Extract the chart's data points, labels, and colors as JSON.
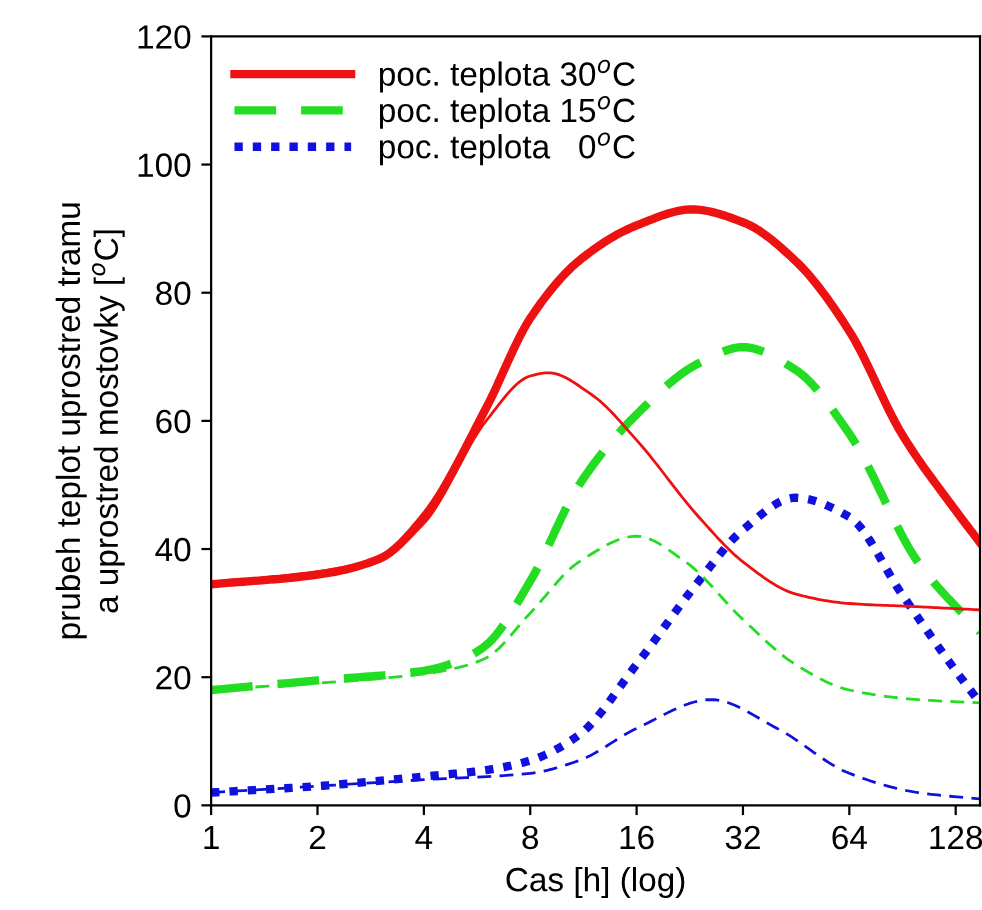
{
  "chart_data": {
    "type": "line",
    "xlabel": "Cas [h] (log)",
    "ylabel": "prubeh teplot uprostred tramu\na uprostred mostovky [$^{o}$C]",
    "log": "x",
    "xlim": [
      1,
      150
    ],
    "xticks": [
      1,
      2,
      4,
      8,
      16,
      32,
      64,
      128
    ],
    "ylim": [
      0,
      120
    ],
    "yticks": [
      0,
      20,
      40,
      60,
      80,
      100,
      120
    ],
    "grid": false,
    "legend": "top left",
    "series": [
      {
        "name": "poc. teplota 30$^{o}$C",
        "color": "#ee1111",
        "line_style": "solid",
        "x": [
          1,
          2,
          3,
          4,
          6,
          8,
          11,
          16,
          23,
          32,
          45,
          64,
          90,
          128,
          150
        ],
        "values": [
          34.5,
          36,
          38.5,
          45,
          62,
          76,
          85,
          90.5,
          93,
          91,
          85,
          74,
          58,
          46,
          41
        ]
      },
      {
        "name": "poc. teplota 15$^{o}$C",
        "color": "#22dd22",
        "line_style": "dashed",
        "x": [
          1,
          2,
          4,
          5,
          6,
          8,
          11,
          16,
          24,
          32,
          45,
          64,
          100,
          150
        ],
        "values": [
          18,
          19.5,
          21,
          22.5,
          25,
          35,
          50,
          61,
          69,
          71.5,
          68,
          58,
          38,
          27
        ]
      },
      {
        "name": "poc. teplota   0$^{o}$C",
        "color": "#1111dd",
        "line_style": "dotted",
        "x": [
          1,
          2,
          4,
          6,
          8,
          11,
          16,
          24,
          32,
          45,
          64,
          90,
          128,
          150
        ],
        "values": [
          2,
          3,
          4.5,
          5.5,
          7,
          11,
          22,
          35,
          43,
          48,
          45,
          33,
          21,
          16
        ]
      },
      {
        "color": "#ee1111",
        "line_style": "solid",
        "x": [
          1,
          3,
          4,
          6,
          8,
          9,
          12,
          16,
          24,
          32,
          45,
          64,
          100,
          150
        ],
        "values": [
          34.5,
          38.5,
          44,
          60,
          67,
          67.5,
          64,
          57,
          45,
          38,
          33,
          31.5,
          31,
          30.5
        ]
      },
      {
        "color": "#22dd22",
        "line_style": "dashed",
        "x": [
          1,
          4,
          5,
          6,
          8,
          11,
          16,
          22,
          32,
          45,
          64,
          100,
          150
        ],
        "values": [
          18,
          20.5,
          21.5,
          23,
          30,
          38,
          42,
          38,
          29,
          22,
          18,
          16.5,
          16
        ]
      },
      {
        "color": "#1111dd",
        "line_style": "dashed",
        "x": [
          1,
          4,
          8,
          11,
          16,
          26,
          40,
          64,
          100,
          150
        ],
        "values": [
          2,
          4,
          5,
          7,
          12,
          16.5,
          12,
          5,
          2,
          1
        ]
      }
    ]
  }
}
